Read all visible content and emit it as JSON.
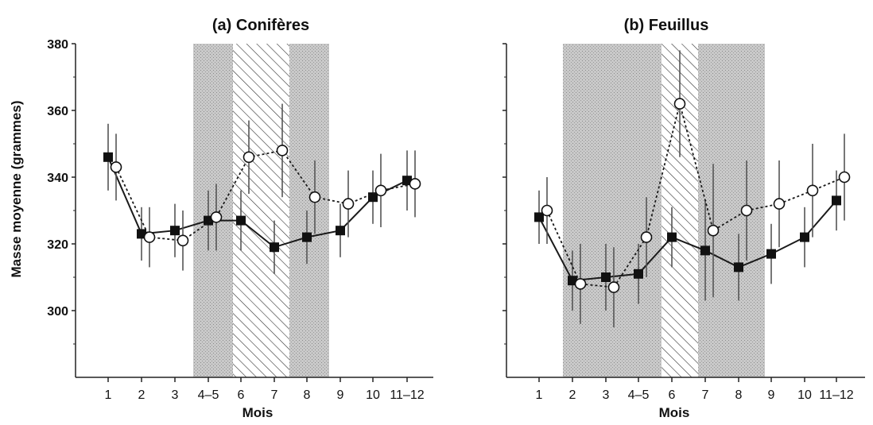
{
  "chart_data": [
    {
      "type": "line",
      "title": "(a) Conifères",
      "xlabel": "Mois",
      "ylabel": "Masse moyenne (grammes)",
      "categories": [
        "1",
        "2",
        "3",
        "4–5",
        "6",
        "7",
        "8",
        "9",
        "10",
        "11–12"
      ],
      "ylim": [
        280,
        380
      ],
      "yticks": [
        "300",
        "320",
        "340",
        "360",
        "380"
      ],
      "grid": false,
      "shaded_periods": [
        {
          "pattern": "stipple",
          "from": "4–5",
          "to": "6"
        },
        {
          "pattern": "hatch",
          "from": "6",
          "to": "8"
        },
        {
          "pattern": "stipple",
          "from": "8",
          "to": "9"
        }
      ],
      "series": [
        {
          "marker": "filled-square",
          "line": "solid",
          "values": [
            346,
            323,
            324,
            327,
            327,
            319,
            322,
            324,
            334,
            339
          ],
          "error": [
            10,
            8,
            8,
            9,
            9,
            8,
            8,
            8,
            8,
            9
          ]
        },
        {
          "marker": "open-circle",
          "line": "dotted",
          "values": [
            343,
            322,
            321,
            328,
            346,
            348,
            334,
            332,
            336,
            338
          ],
          "error": [
            10,
            9,
            9,
            10,
            11,
            14,
            11,
            10,
            11,
            10
          ]
        }
      ]
    },
    {
      "type": "line",
      "title": "(b) Feuillus",
      "xlabel": "Mois",
      "ylabel": "",
      "categories": [
        "1",
        "2",
        "3",
        "4–5",
        "6",
        "7",
        "8",
        "9",
        "10",
        "11–12"
      ],
      "ylim": [
        280,
        380
      ],
      "grid": false,
      "shaded_periods": [
        {
          "pattern": "stipple",
          "from": "2",
          "to": "6"
        },
        {
          "pattern": "hatch",
          "from": "6",
          "to": "7"
        },
        {
          "pattern": "stipple",
          "from": "7",
          "to": "9"
        }
      ],
      "series": [
        {
          "marker": "filled-square",
          "line": "solid",
          "values": [
            328,
            309,
            310,
            311,
            322,
            318,
            313,
            317,
            322,
            333
          ],
          "error": [
            8,
            9,
            10,
            9,
            9,
            15,
            10,
            9,
            9,
            9
          ]
        },
        {
          "marker": "open-circle",
          "line": "dotted",
          "values": [
            330,
            308,
            307,
            322,
            362,
            324,
            330,
            332,
            336,
            340
          ],
          "error": [
            10,
            12,
            12,
            12,
            16,
            20,
            15,
            13,
            14,
            13
          ]
        }
      ]
    }
  ]
}
